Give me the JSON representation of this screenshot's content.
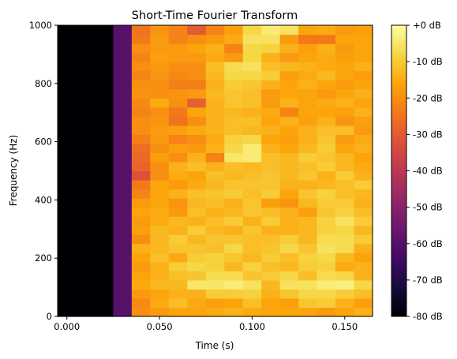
{
  "chart_data": {
    "type": "heatmap",
    "title": "Short-Time Fourier Transform",
    "xlabel": "Time (s)",
    "ylabel": "Frequency (Hz)",
    "xlim": [
      -0.005,
      0.165
    ],
    "ylim": [
      0,
      1000
    ],
    "x_ticks": [
      {
        "value": 0.0,
        "label": "0.000"
      },
      {
        "value": 0.05,
        "label": "0.050"
      },
      {
        "value": 0.1,
        "label": "0.100"
      },
      {
        "value": 0.15,
        "label": "0.150"
      }
    ],
    "y_ticks": [
      {
        "value": 0,
        "label": "0"
      },
      {
        "value": 200,
        "label": "200"
      },
      {
        "value": 400,
        "label": "400"
      },
      {
        "value": 600,
        "label": "600"
      },
      {
        "value": 800,
        "label": "800"
      },
      {
        "value": 1000,
        "label": "1000"
      }
    ],
    "colormap": "inferno",
    "colorbar": {
      "range": [
        -80,
        0
      ],
      "ticks": [
        {
          "value": 0,
          "label": "+0 dB"
        },
        {
          "value": -10,
          "label": "-10 dB"
        },
        {
          "value": -20,
          "label": "-20 dB"
        },
        {
          "value": -30,
          "label": "-30 dB"
        },
        {
          "value": -40,
          "label": "-40 dB"
        },
        {
          "value": -50,
          "label": "-50 dB"
        },
        {
          "value": -60,
          "label": "-60 dB"
        },
        {
          "value": -70,
          "label": "-70 dB"
        },
        {
          "value": -80,
          "label": "-80 dB"
        }
      ]
    },
    "time_edges": [
      -0.005,
      0.005,
      0.015,
      0.025,
      0.035,
      0.045,
      0.055,
      0.065,
      0.075,
      0.085,
      0.095,
      0.105,
      0.115,
      0.125,
      0.135,
      0.145,
      0.155,
      0.165
    ],
    "freq_edges": [
      0,
      31.25,
      62.5,
      93.75,
      125,
      156.25,
      187.5,
      218.75,
      250,
      281.25,
      312.5,
      343.75,
      375,
      406.25,
      437.5,
      468.75,
      500,
      531.25,
      562.5,
      593.75,
      625,
      656.25,
      687.5,
      718.75,
      750,
      781.25,
      812.5,
      843.75,
      875,
      906.25,
      937.5,
      968.75,
      1000
    ],
    "values_db": [
      [
        -80,
        -80,
        -80,
        -60,
        -20,
        -18,
        -16,
        -16,
        -15,
        -14,
        -15,
        -16,
        -16,
        -16,
        -18,
        -16,
        -14
      ],
      [
        -80,
        -80,
        -80,
        -60,
        -21,
        -15,
        -12,
        -15,
        -17,
        -16,
        -12,
        -16,
        -17,
        -11,
        -10,
        -14,
        -17
      ],
      [
        -80,
        -80,
        -80,
        -60,
        -18,
        -16,
        -14,
        -14,
        -10,
        -10,
        -9,
        -14,
        -11,
        -8,
        -8,
        -10,
        -12
      ],
      [
        -80,
        -80,
        -80,
        -60,
        -15,
        -13,
        -13,
        -5,
        -5,
        -4,
        -6,
        -13,
        -6,
        -6,
        -4,
        -3,
        -8
      ],
      [
        -80,
        -80,
        -80,
        -60,
        -16,
        -14,
        -12,
        -11,
        -7,
        -7,
        -11,
        -10,
        -8,
        -12,
        -7,
        -8,
        -14
      ],
      [
        -80,
        -80,
        -80,
        -60,
        -18,
        -14,
        -10,
        -8,
        -9,
        -13,
        -9,
        -12,
        -13,
        -10,
        -9,
        -15,
        -14
      ],
      [
        -80,
        -80,
        -80,
        -60,
        -16,
        -12,
        -15,
        -10,
        -9,
        -11,
        -13,
        -10,
        -12,
        -9,
        -8,
        -13,
        -16
      ],
      [
        -80,
        -80,
        -80,
        -60,
        -14,
        -13,
        -11,
        -11,
        -12,
        -8,
        -12,
        -11,
        -8,
        -11,
        -6,
        -7,
        -14
      ],
      [
        -80,
        -80,
        -80,
        -60,
        -20,
        -13,
        -10,
        -13,
        -11,
        -11,
        -12,
        -12,
        -10,
        -13,
        -7,
        -7,
        -10
      ],
      [
        -80,
        -80,
        -80,
        -60,
        -17,
        -13,
        -14,
        -10,
        -13,
        -14,
        -11,
        -14,
        -14,
        -13,
        -9,
        -8,
        -13
      ],
      [
        -80,
        -80,
        -80,
        -60,
        -18,
        -15,
        -13,
        -14,
        -12,
        -10,
        -14,
        -10,
        -14,
        -13,
        -9,
        -6,
        -10
      ],
      [
        -80,
        -80,
        -80,
        -60,
        -16,
        -15,
        -18,
        -12,
        -14,
        -13,
        -11,
        -12,
        -14,
        -17,
        -11,
        -9,
        -12
      ],
      [
        -80,
        -80,
        -80,
        -60,
        -18,
        -16,
        -19,
        -13,
        -12,
        -14,
        -11,
        -17,
        -19,
        -13,
        -10,
        -10,
        -14
      ],
      [
        -80,
        -80,
        -80,
        -60,
        -22,
        -16,
        -14,
        -12,
        -11,
        -10,
        -12,
        -10,
        -16,
        -11,
        -9,
        -12,
        -13
      ],
      [
        -80,
        -80,
        -80,
        -60,
        -24,
        -16,
        -18,
        -15,
        -13,
        -11,
        -11,
        -11,
        -14,
        -14,
        -13,
        -12,
        -10
      ],
      [
        -80,
        -80,
        -80,
        -60,
        -32,
        -20,
        -15,
        -16,
        -12,
        -13,
        -12,
        -11,
        -13,
        -11,
        -14,
        -10,
        -14
      ],
      [
        -80,
        -80,
        -80,
        -60,
        -28,
        -20,
        -14,
        -12,
        -14,
        -12,
        -13,
        -12,
        -13,
        -12,
        -10,
        -13,
        -15
      ],
      [
        -80,
        -80,
        -80,
        -60,
        -27,
        -17,
        -20,
        -14,
        -22,
        -5,
        -4,
        -12,
        -13,
        -10,
        -11,
        -13,
        -16
      ],
      [
        -80,
        -80,
        -80,
        -60,
        -26,
        -20,
        -17,
        -18,
        -14,
        -8,
        -4,
        -14,
        -16,
        -13,
        -10,
        -16,
        -14
      ],
      [
        -80,
        -80,
        -80,
        -60,
        -23,
        -18,
        -22,
        -20,
        -15,
        -9,
        -8,
        -16,
        -17,
        -14,
        -11,
        -18,
        -15
      ],
      [
        -80,
        -80,
        -80,
        -60,
        -20,
        -18,
        -17,
        -15,
        -14,
        -12,
        -13,
        -14,
        -16,
        -14,
        -12,
        -12,
        -18
      ],
      [
        -80,
        -80,
        -80,
        -60,
        -20,
        -19,
        -25,
        -20,
        -14,
        -12,
        -12,
        -16,
        -14,
        -17,
        -14,
        -19,
        -17
      ],
      [
        -80,
        -80,
        -80,
        -60,
        -22,
        -20,
        -24,
        -16,
        -14,
        -13,
        -14,
        -15,
        -22,
        -16,
        -16,
        -17,
        -14
      ],
      [
        -80,
        -80,
        -80,
        -60,
        -21,
        -15,
        -20,
        -29,
        -14,
        -11,
        -12,
        -18,
        -14,
        -16,
        -15,
        -14,
        -16
      ],
      [
        -80,
        -80,
        -80,
        -60,
        -19,
        -20,
        -19,
        -18,
        -13,
        -11,
        -12,
        -18,
        -16,
        -16,
        -18,
        -16,
        -14
      ],
      [
        -80,
        -80,
        -80,
        -60,
        -20,
        -20,
        -23,
        -23,
        -14,
        -10,
        -11,
        -14,
        -16,
        -14,
        -16,
        -18,
        -16
      ],
      [
        -80,
        -80,
        -80,
        -60,
        -22,
        -19,
        -21,
        -20,
        -13,
        -8,
        -8,
        -10,
        -17,
        -15,
        -13,
        -16,
        -17
      ],
      [
        -80,
        -80,
        -80,
        -60,
        -20,
        -18,
        -20,
        -20,
        -12,
        -7,
        -6,
        -12,
        -13,
        -14,
        -15,
        -16,
        -14
      ],
      [
        -80,
        -80,
        -80,
        -60,
        -22,
        -17,
        -18,
        -18,
        -15,
        -18,
        -8,
        -14,
        -18,
        -16,
        -15,
        -17,
        -16
      ],
      [
        -80,
        -80,
        -80,
        -60,
        -20,
        -18,
        -18,
        -16,
        -14,
        -22,
        -8,
        -9,
        -14,
        -17,
        -14,
        -18,
        -16
      ],
      [
        -80,
        -80,
        -80,
        -60,
        -24,
        -18,
        -22,
        -20,
        -18,
        -15,
        -6,
        -6,
        -18,
        -24,
        -24,
        -16,
        -16
      ],
      [
        -80,
        -80,
        -80,
        -60,
        -25,
        -19,
        -22,
        -30,
        -22,
        -17,
        -8,
        -4,
        -6,
        -16,
        -15,
        -18,
        -17
      ]
    ]
  }
}
